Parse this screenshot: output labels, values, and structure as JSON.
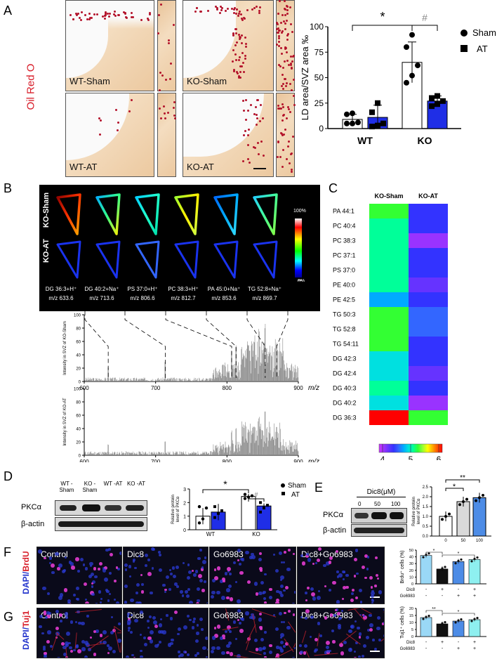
{
  "panels": {
    "a": "A",
    "b": "B",
    "c": "C",
    "d": "D",
    "e": "E",
    "f": "F",
    "g": "G"
  },
  "panelA": {
    "stain_label": "Oil Red O",
    "images": [
      "WT-Sham",
      "KO-Sham",
      "WT-AT",
      "KO-AT"
    ]
  },
  "chartA": {
    "type": "bar",
    "categories": [
      "WT",
      "KO"
    ],
    "series": [
      {
        "name": "Sham",
        "values": [
          9,
          65
        ],
        "error": [
          5,
          20
        ],
        "points": [
          [
            5,
            5,
            6,
            14,
            15
          ],
          [
            45,
            52,
            62,
            80,
            92
          ]
        ]
      },
      {
        "name": "AT",
        "values": [
          11,
          27
        ],
        "error": [
          12,
          5
        ],
        "points": [
          [
            2,
            3,
            5,
            16,
            25
          ],
          [
            22,
            24,
            27,
            30,
            32
          ]
        ]
      }
    ],
    "ylabel": "LD area/SVZ area ‰",
    "yticks": [
      "0",
      "25",
      "50",
      "75",
      "100"
    ],
    "ylim": [
      0,
      100
    ],
    "sig1": "*",
    "sig2": "#",
    "legend": [
      "Sham",
      "AT"
    ]
  },
  "panelB": {
    "row_labels": [
      "KO-Sham",
      "KO-AT"
    ],
    "colorbar": {
      "max": "100%",
      "min": "0%"
    },
    "peaks": [
      {
        "name": "DG 36:3+H⁺",
        "mz": "m/z 633.6"
      },
      {
        "name": "DG 40:2+Na⁺",
        "mz": "m/z 713.6"
      },
      {
        "name": "PS 37:0+H⁺",
        "mz": "m/z 806.6"
      },
      {
        "name": "PC 38:3+H⁺",
        "mz": "m/z 812.7"
      },
      {
        "name": "PA 45:0+Na⁺",
        "mz": "m/z 853.6"
      },
      {
        "name": "TG 52:8+Na⁺",
        "mz": "m/z 869.7"
      }
    ],
    "spectrum1_ylabel": "Intensity in SVZ of KO-Sham",
    "spectrum2_ylabel": "Intensity in SVZ of KO-AT",
    "xticks": [
      "600",
      "700",
      "800",
      "900"
    ],
    "yticks": [
      "0",
      "20",
      "40",
      "60",
      "80",
      "100"
    ],
    "xlabel": "m/z"
  },
  "chart_data": [
    {
      "type": "bar",
      "title": "",
      "categories": [
        "WT",
        "KO"
      ],
      "series": [
        {
          "name": "Sham",
          "values": [
            9,
            65
          ]
        },
        {
          "name": "AT",
          "values": [
            11,
            27
          ]
        }
      ],
      "ylabel": "LD area/SVZ area ‰",
      "ylim": [
        0,
        100
      ]
    },
    {
      "type": "heatmap",
      "columns": [
        "KO-Sham",
        "KO-AT"
      ],
      "rows": [
        "PA 44:1",
        "PC 40:4",
        "PC 38:3",
        "PC 37:1",
        "PS 37:0",
        "PE 40:0",
        "PE 42:5",
        "TG 50:3",
        "TG 52:8",
        "TG 54:11",
        "DG 42:3",
        "DG 42:4",
        "DG 40:3",
        "DG 40:2",
        "DG 36:3"
      ],
      "values": [
        [
          5.2,
          4.5
        ],
        [
          5.0,
          4.4
        ],
        [
          5.1,
          4.2
        ],
        [
          5.0,
          4.5
        ],
        [
          5.0,
          4.4
        ],
        [
          5.1,
          4.3
        ],
        [
          4.8,
          4.5
        ],
        [
          5.3,
          4.6
        ],
        [
          5.2,
          4.6
        ],
        [
          5.2,
          4.5
        ],
        [
          4.9,
          4.4
        ],
        [
          4.9,
          4.3
        ],
        [
          5.0,
          4.4
        ],
        [
          4.9,
          4.2
        ],
        [
          6.0,
          5.2
        ]
      ],
      "scale": [
        4,
        6
      ]
    },
    {
      "type": "bar",
      "categories": [
        "WT",
        "KO"
      ],
      "series": [
        {
          "name": "Sham",
          "values": [
            1.0,
            2.45
          ]
        },
        {
          "name": "AT",
          "values": [
            1.3,
            1.75
          ]
        }
      ],
      "ylabel": "Relative protein level of PKCα",
      "ylim": [
        0,
        3
      ]
    },
    {
      "type": "bar",
      "categories": [
        "0",
        "50",
        "100"
      ],
      "values": [
        1.0,
        1.75,
        1.95
      ],
      "xlabel": "Dic8(μM)",
      "ylabel": "Relative protein level of PKCα",
      "ylim": [
        0,
        2.5
      ]
    },
    {
      "type": "bar",
      "categories": [
        "Control",
        "Dic8",
        "Go6983",
        "Dic8+Go6983"
      ],
      "values": [
        42,
        22,
        33,
        36
      ],
      "ylabel": "Brdu⁺ cells (%)",
      "ylim": [
        0,
        50
      ]
    },
    {
      "type": "bar",
      "categories": [
        "Control",
        "Dic8",
        "Go6983",
        "Dic8+Go6983"
      ],
      "values": [
        13.5,
        9,
        11,
        12
      ],
      "ylabel": "Tuj1⁺ cells (%)",
      "ylim": [
        0,
        20
      ]
    }
  ],
  "panelC": {
    "columns": [
      "KO-Sham",
      "KO-AT"
    ],
    "scale_ticks": [
      "4",
      "5",
      "6"
    ]
  },
  "panelD": {
    "lanes": [
      "WT -Sham",
      "KO -Sham",
      "WT -AT",
      "KO -AT"
    ],
    "bands": [
      "PKCα",
      "β-actin"
    ],
    "ylabel": "Relative protein level of PKCα",
    "yticks": [
      "0",
      "1",
      "2",
      "3"
    ],
    "sig1": "*",
    "sig2": "#",
    "legend": [
      "Sham",
      "AT"
    ]
  },
  "panelE": {
    "dose_title": "Dic8(μM)",
    "doses": [
      "0",
      "50",
      "100"
    ],
    "bands": [
      "PKCα",
      "β-actin"
    ],
    "ylabel": "Relative protein level of PKCα",
    "yticks": [
      "0.0",
      "0.5",
      "1.0",
      "1.5",
      "2.0",
      "2.5"
    ],
    "sig1": "*",
    "sig2": "**"
  },
  "panelF": {
    "side_label_a": "DAPI/",
    "side_label_b": "BrdU",
    "images": [
      "Control",
      "Dic8",
      "Go6983",
      "Dic8+Go6983"
    ],
    "ylabel": "Brdu⁺ cells (%)",
    "yticks": [
      "0",
      "10",
      "20",
      "30",
      "40",
      "50"
    ],
    "sig": [
      "*",
      "*"
    ],
    "rows": [
      {
        "name": "Dic8",
        "marks": [
          "-",
          "+",
          "-",
          "+"
        ]
      },
      {
        "name": "Go6983",
        "marks": [
          "-",
          "-",
          "+",
          "+"
        ]
      }
    ]
  },
  "panelG": {
    "side_label_a": "DAPI/",
    "side_label_b": "Tuj1",
    "images": [
      "Control",
      "Dic8",
      "Go6983",
      "Dic8+Go6983"
    ],
    "ylabel": "Tuj1⁺ cells (%)",
    "yticks": [
      "0",
      "5",
      "10",
      "15",
      "20"
    ],
    "sig": [
      "**",
      "*"
    ],
    "rows": [
      {
        "name": "Dic8",
        "marks": [
          "-",
          "+",
          "-",
          "+"
        ]
      },
      {
        "name": "Go6983",
        "marks": [
          "-",
          "-",
          "+",
          "+"
        ]
      }
    ]
  },
  "colors": {
    "sham": "#ffffff",
    "at": "#1f2ee6",
    "ohne": "#9ad8f6",
    "dic8": "#111111",
    "go": "#4d8ce6",
    "combo": "#8ef0f0"
  }
}
